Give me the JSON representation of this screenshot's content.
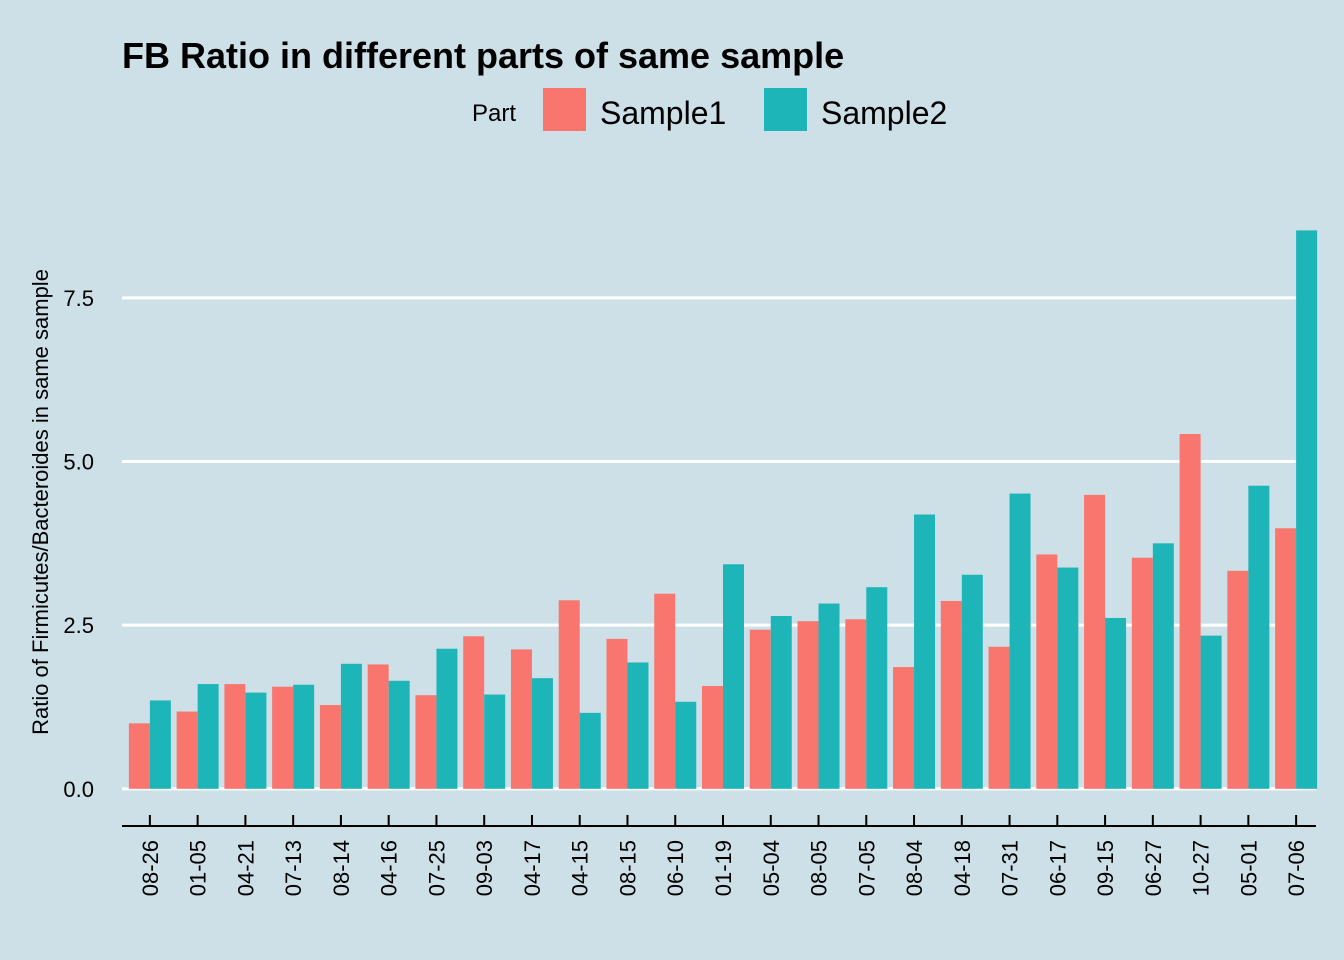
{
  "chart_data": {
    "type": "bar",
    "title": "FB Ratio in different parts of same sample",
    "xlabel": "",
    "ylabel": "Ratio of Firmicutes/Bacteroides in same sample",
    "legend_title": "Part",
    "legend_position": "top",
    "ylim": [
      -0.4,
      9.3
    ],
    "yticks": [
      0.0,
      2.5,
      5.0,
      7.5
    ],
    "ytick_labels": [
      "0.0",
      "2.5",
      "5.0",
      "7.5"
    ],
    "grid": "horizontal",
    "categories": [
      "08-26",
      "01-05",
      "04-21",
      "07-13",
      "08-14",
      "04-16",
      "07-25",
      "09-03",
      "04-17",
      "04-15",
      "08-15",
      "06-10",
      "01-19",
      "05-04",
      "08-05",
      "07-05",
      "08-04",
      "04-18",
      "07-31",
      "06-17",
      "09-15",
      "06-27",
      "10-27",
      "05-01",
      "07-06"
    ],
    "series": [
      {
        "name": "Sample1",
        "color": "#f8766d",
        "values": [
          1.0,
          1.18,
          1.6,
          1.56,
          1.28,
          1.9,
          1.43,
          2.33,
          2.13,
          2.88,
          2.29,
          2.98,
          1.57,
          2.43,
          2.56,
          2.59,
          1.86,
          2.87,
          2.17,
          3.58,
          4.49,
          3.53,
          5.42,
          3.33,
          3.98
        ]
      },
      {
        "name": "Sample2",
        "color": "#1eb5b9",
        "values": [
          1.35,
          1.6,
          1.47,
          1.59,
          1.91,
          1.65,
          2.14,
          1.44,
          1.69,
          1.16,
          1.93,
          1.33,
          3.43,
          2.64,
          2.83,
          3.08,
          4.19,
          3.27,
          4.51,
          3.38,
          2.61,
          3.75,
          2.34,
          4.63,
          8.53
        ]
      }
    ],
    "colors": {
      "background": "#cde0e7",
      "grid": "#ffffff",
      "axis": "#000000"
    }
  }
}
